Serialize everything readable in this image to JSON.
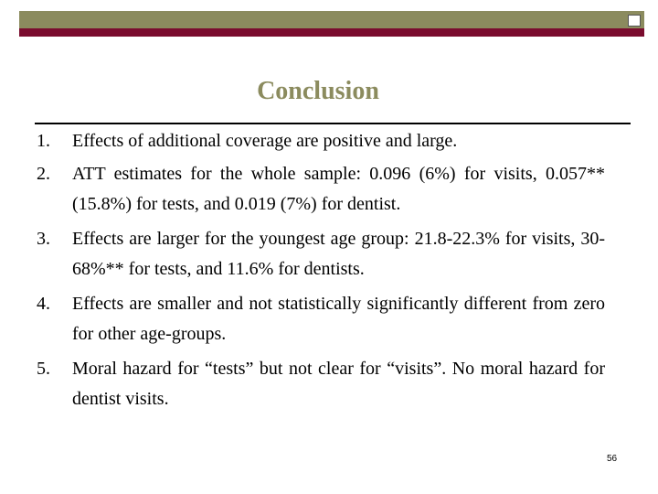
{
  "slide": {
    "title": "Conclusion",
    "items": [
      {
        "number": "1.",
        "text": "Effects of additional coverage are positive and large."
      },
      {
        "number": "2.",
        "text": "ATT estimates for the whole sample: 0.096 (6%) for visits, 0.057** (15.8%) for tests, and 0.019 (7%) for dentist."
      },
      {
        "number": "3.",
        "text": "Effects are larger for the youngest age group: 21.8-22.3% for visits, 30-68%** for tests, and 11.6% for dentists."
      },
      {
        "number": "4.",
        "text": "Effects are smaller and not statistically significantly different from zero for other age-groups."
      },
      {
        "number": "5.",
        "text": "Moral hazard for “tests” but not clear for “visits”. No moral hazard for dentist visits."
      }
    ],
    "page_number": "56"
  },
  "colors": {
    "accent_olive": "#8b8b5e",
    "accent_maroon": "#7a0c2e"
  }
}
